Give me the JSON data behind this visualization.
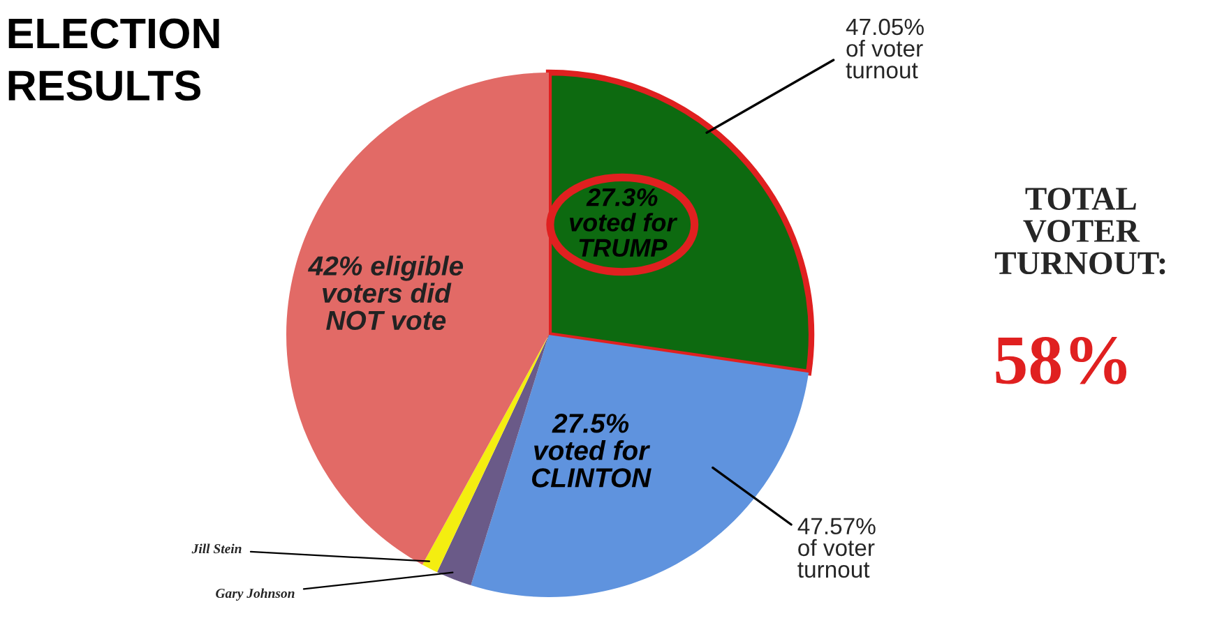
{
  "chart_data": {
    "type": "pie",
    "title": "ELECTION\nRESULTS",
    "categories": [
      "27.3%\nvoted for\nTRUMP",
      "27.5%\nvoted for\nCLINTON",
      "Gary Johnson",
      "Jill Stein",
      "42% eligible\nvoters did\nNOT vote"
    ],
    "values": [
      27.3,
      27.5,
      2.2,
      1.0,
      42
    ],
    "colors": [
      "#0d6a10",
      "#5f93de",
      "#6a5a88",
      "#f4ee10",
      "#e26a66"
    ],
    "annotations": [
      "47.05%\nof voter\nturnout",
      "47.57%\nof voter\nturnout",
      "TOTAL\nVOTER\nTURNOUT:",
      "58%"
    ]
  }
}
